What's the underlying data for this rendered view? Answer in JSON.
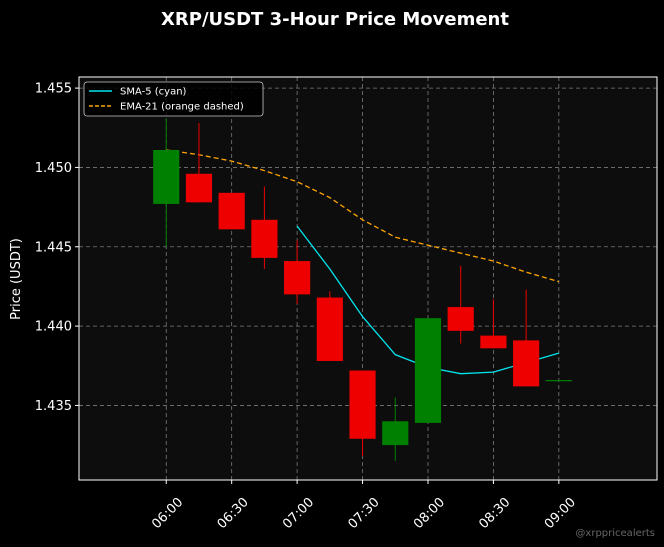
{
  "chart_data": {
    "type": "candlestick",
    "title": "XRP/USDT 3-Hour Price Movement",
    "ylabel": "Price (USDT)",
    "xlabel": "",
    "ylim": [
      1.4303,
      1.4557
    ],
    "xlim_minutes_from_0600": [
      -40,
      225
    ],
    "yticks": [
      "1.435",
      "1.440",
      "1.445",
      "1.450",
      "1.455"
    ],
    "ytick_values": [
      1.435,
      1.44,
      1.445,
      1.45,
      1.455
    ],
    "xticks": [
      "06:00",
      "06:30",
      "07:00",
      "07:30",
      "08:00",
      "08:30",
      "09:00"
    ],
    "xtick_minutes": [
      0,
      30,
      60,
      90,
      120,
      150,
      180
    ],
    "grid": true,
    "legend_position": "top-left",
    "candles": [
      {
        "time": "06:00",
        "open": 1.4477,
        "high": 1.4531,
        "low": 1.445,
        "close": 1.4511
      },
      {
        "time": "06:15",
        "open": 1.4496,
        "high": 1.4528,
        "low": 1.4478,
        "close": 1.4478
      },
      {
        "time": "06:30",
        "open": 1.4484,
        "high": 1.4484,
        "low": 1.4461,
        "close": 1.4461
      },
      {
        "time": "06:45",
        "open": 1.4467,
        "high": 1.4488,
        "low": 1.4436,
        "close": 1.4443
      },
      {
        "time": "07:00",
        "open": 1.4441,
        "high": 1.4454,
        "low": 1.4414,
        "close": 1.442
      },
      {
        "time": "07:15",
        "open": 1.4418,
        "high": 1.4422,
        "low": 1.4378,
        "close": 1.4378
      },
      {
        "time": "07:30",
        "open": 1.4372,
        "high": 1.4372,
        "low": 1.4318,
        "close": 1.4329
      },
      {
        "time": "07:45",
        "open": 1.4325,
        "high": 1.4355,
        "low": 1.4315,
        "close": 1.434
      },
      {
        "time": "08:00",
        "open": 1.4339,
        "high": 1.4405,
        "low": 1.4339,
        "close": 1.4405
      },
      {
        "time": "08:15",
        "open": 1.4412,
        "high": 1.4438,
        "low": 1.4389,
        "close": 1.4397
      },
      {
        "time": "08:30",
        "open": 1.4394,
        "high": 1.4417,
        "low": 1.4386,
        "close": 1.4386
      },
      {
        "time": "08:45",
        "open": 1.4391,
        "high": 1.4423,
        "low": 1.4362,
        "close": 1.4362
      },
      {
        "time": "09:00",
        "open": 1.4366,
        "high": 1.4366,
        "low": 1.4366,
        "close": 1.4366
      }
    ],
    "series": [
      {
        "name": "SMA-5 (cyan)",
        "color": "#00e5ee",
        "style": "solid",
        "x": [
          "07:00",
          "07:15",
          "07:30",
          "07:45",
          "08:00",
          "08:15",
          "08:30",
          "08:45",
          "09:00"
        ],
        "values": [
          1.4463,
          1.4436,
          1.4406,
          1.4382,
          1.4374,
          1.437,
          1.4371,
          1.4377,
          1.4383
        ]
      },
      {
        "name": "EMA-21 (orange dashed)",
        "color": "#ffa500",
        "style": "dashed",
        "x": [
          "06:00",
          "06:15",
          "06:30",
          "06:45",
          "07:00",
          "07:15",
          "07:30",
          "07:45",
          "08:00",
          "08:15",
          "08:30",
          "08:45",
          "09:00"
        ],
        "values": [
          1.4511,
          1.4508,
          1.4504,
          1.4498,
          1.4491,
          1.4481,
          1.4467,
          1.4456,
          1.4451,
          1.4446,
          1.4441,
          1.4434,
          1.4428
        ]
      }
    ],
    "colors": {
      "background": "#000000",
      "plot_background": "#0d0d0d",
      "up": "#008000",
      "down": "#ee0000",
      "grid": "#7a7a7a",
      "text": "#ffffff"
    }
  },
  "watermark": "@xrppricealerts"
}
